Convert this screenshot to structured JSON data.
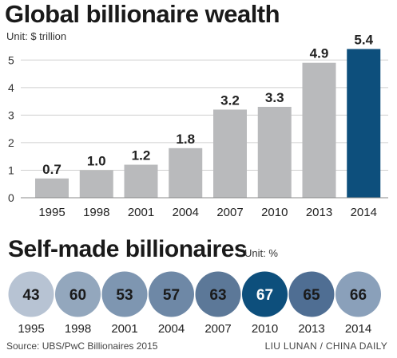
{
  "chart_data": [
    {
      "type": "bar",
      "title": "Global billionaire wealth",
      "unit": "Unit: $ trillion",
      "categories": [
        "1995",
        "1998",
        "2001",
        "2004",
        "2007",
        "2010",
        "2013",
        "2014"
      ],
      "values": [
        0.7,
        1.0,
        1.2,
        1.8,
        3.2,
        3.3,
        4.9,
        5.4
      ],
      "value_labels": [
        "0.7",
        "1.0",
        "1.2",
        "1.8",
        "3.2",
        "3.3",
        "4.9",
        "5.4"
      ],
      "y_ticks": [
        "0",
        "1",
        "2",
        "3",
        "4",
        "5"
      ],
      "ylim": [
        0,
        5.5
      ],
      "grid": true,
      "bar_color": "#b9babc",
      "highlight_color": "#0d4f7c",
      "highlight_index": 7
    },
    {
      "type": "bubble",
      "title": "Self-made billionaires",
      "unit": "Unit: %",
      "categories": [
        "1995",
        "1998",
        "2001",
        "2004",
        "2007",
        "2010",
        "2013",
        "2014"
      ],
      "values": [
        43,
        60,
        53,
        57,
        63,
        67,
        65,
        66
      ],
      "colors": [
        "#b7c3d3",
        "#93a7bd",
        "#7e96b1",
        "#6e88a6",
        "#5c7898",
        "#0d4f7c",
        "#4f6e93",
        "#8aa0ba"
      ],
      "highlight_index": 5
    }
  ],
  "footer": {
    "source": "Source: UBS/PwC Billionaires 2015",
    "credit": "LIU LUNAN / CHINA DAILY"
  }
}
